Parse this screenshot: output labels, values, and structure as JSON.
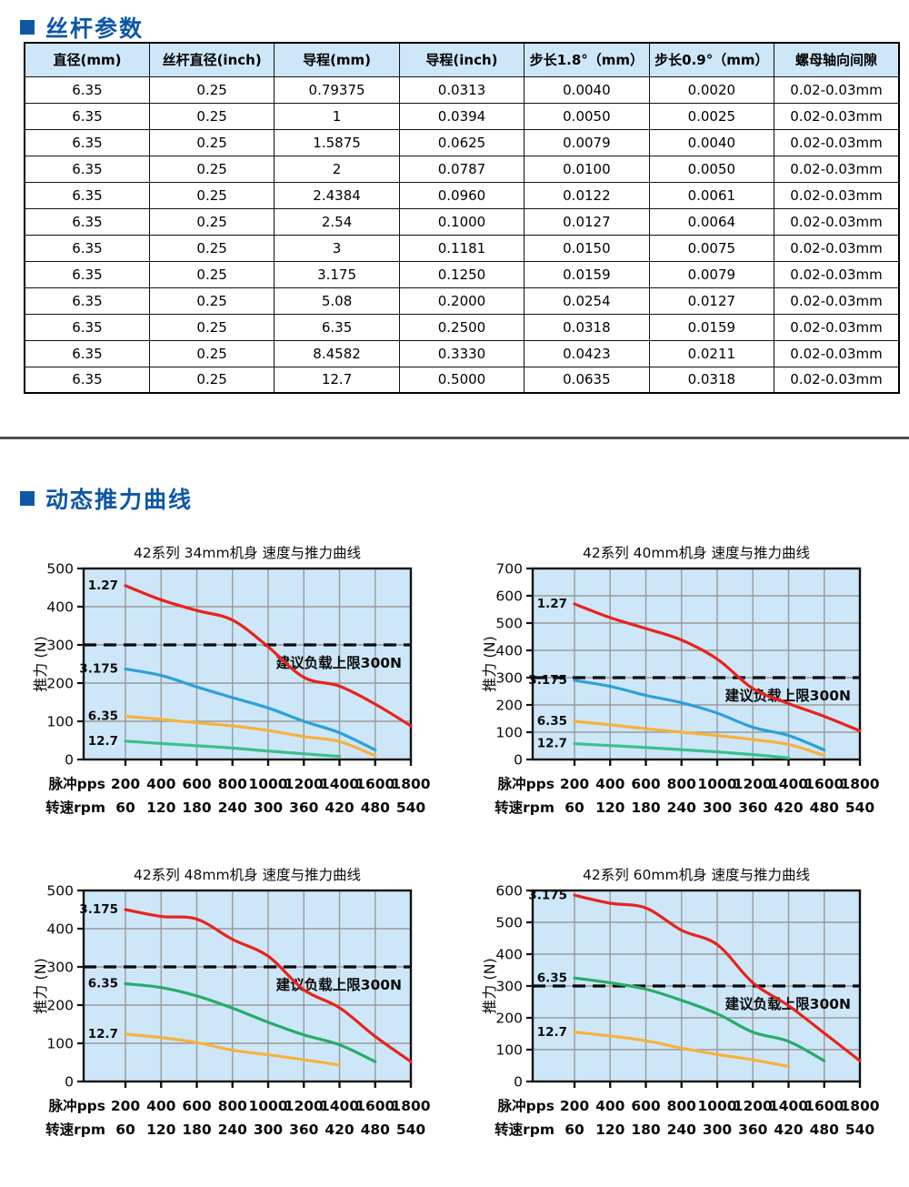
{
  "sections": {
    "screw_params_title": "丝杆参数",
    "thrust_curves_title": "动态推力曲线"
  },
  "theme": {
    "accent_blue": "#0d57a7",
    "table_header_bg": "#cde7f8",
    "divider_color": "#4d4d4d"
  },
  "table": {
    "headers": [
      "直径(mm)",
      "丝杆直径(inch)",
      "导程(mm)",
      "导程(inch)",
      "步长1.8°（mm）",
      "步长0.9°（mm）",
      "螺母轴向间隙"
    ],
    "rows": [
      [
        "6.35",
        "0.25",
        "0.79375",
        "0.0313",
        "0.0040",
        "0.0020",
        "0.02-0.03mm"
      ],
      [
        "6.35",
        "0.25",
        "1",
        "0.0394",
        "0.0050",
        "0.0025",
        "0.02-0.03mm"
      ],
      [
        "6.35",
        "0.25",
        "1.5875",
        "0.0625",
        "0.0079",
        "0.0040",
        "0.02-0.03mm"
      ],
      [
        "6.35",
        "0.25",
        "2",
        "0.0787",
        "0.0100",
        "0.0050",
        "0.02-0.03mm"
      ],
      [
        "6.35",
        "0.25",
        "2.4384",
        "0.0960",
        "0.0122",
        "0.0061",
        "0.02-0.03mm"
      ],
      [
        "6.35",
        "0.25",
        "2.54",
        "0.1000",
        "0.0127",
        "0.0064",
        "0.02-0.03mm"
      ],
      [
        "6.35",
        "0.25",
        "3",
        "0.1181",
        "0.0150",
        "0.0075",
        "0.02-0.03mm"
      ],
      [
        "6.35",
        "0.25",
        "3.175",
        "0.1250",
        "0.0159",
        "0.0079",
        "0.02-0.03mm"
      ],
      [
        "6.35",
        "0.25",
        "5.08",
        "0.2000",
        "0.0254",
        "0.0127",
        "0.02-0.03mm"
      ],
      [
        "6.35",
        "0.25",
        "6.35",
        "0.2500",
        "0.0318",
        "0.0159",
        "0.02-0.03mm"
      ],
      [
        "6.35",
        "0.25",
        "8.4582",
        "0.3330",
        "0.0423",
        "0.0211",
        "0.02-0.03mm"
      ],
      [
        "6.35",
        "0.25",
        "12.7",
        "0.5000",
        "0.0635",
        "0.0318",
        "0.02-0.03mm"
      ]
    ]
  },
  "chart_data": [
    {
      "type": "line",
      "title": "42系列 34mm机身 速度与推力曲线",
      "ylabel": "推力 (N)",
      "ylim": [
        0,
        500
      ],
      "ytick_step": 100,
      "x_row_labels": [
        "脉冲pps",
        "转速rpm"
      ],
      "x_pps": [
        200,
        400,
        600,
        800,
        1000,
        1200,
        1400,
        1600,
        1800
      ],
      "x_rpm": [
        60,
        120,
        180,
        240,
        300,
        360,
        420,
        480,
        540
      ],
      "limit_line": {
        "value": 300,
        "label": "建议负载上限300N"
      },
      "colors": {
        "plot_bg": "#cde7f8",
        "grid": "#9a9a9a"
      },
      "series": [
        {
          "name": "1.27",
          "color": "#e8231d",
          "values": [
            455,
            418,
            390,
            365,
            295,
            215,
            192,
            145,
            88
          ]
        },
        {
          "name": "3.175",
          "color": "#2e9fd9",
          "values": [
            237,
            220,
            190,
            162,
            135,
            100,
            70,
            25,
            null
          ]
        },
        {
          "name": "6.35",
          "color": "#f7b13c",
          "values": [
            113,
            105,
            96,
            88,
            76,
            60,
            47,
            10,
            null
          ]
        },
        {
          "name": "12.7",
          "color": "#3cbf8e",
          "values": [
            48,
            42,
            36,
            30,
            22,
            15,
            8,
            null,
            null
          ]
        }
      ]
    },
    {
      "type": "line",
      "title": "42系列 40mm机身 速度与推力曲线",
      "ylabel": "推力 (N)",
      "ylim": [
        0,
        700
      ],
      "ytick_step": 100,
      "x_row_labels": [
        "脉冲pps",
        "转速rpm"
      ],
      "x_pps": [
        200,
        400,
        600,
        800,
        1000,
        1200,
        1400,
        1600,
        1800
      ],
      "x_rpm": [
        60,
        120,
        180,
        240,
        300,
        360,
        420,
        480,
        540
      ],
      "limit_line": {
        "value": 300,
        "label": "建议负载上限300N"
      },
      "colors": {
        "plot_bg": "#cde7f8",
        "grid": "#9a9a9a"
      },
      "series": [
        {
          "name": "1.27",
          "color": "#e8231d",
          "values": [
            570,
            520,
            480,
            438,
            368,
            260,
            205,
            158,
            105
          ]
        },
        {
          "name": "3.175",
          "color": "#2e9fd9",
          "values": [
            290,
            268,
            235,
            208,
            170,
            118,
            88,
            35,
            null
          ]
        },
        {
          "name": "6.35",
          "color": "#f7b13c",
          "values": [
            140,
            127,
            113,
            100,
            88,
            73,
            55,
            15,
            null
          ]
        },
        {
          "name": "12.7",
          "color": "#3cbf8e",
          "values": [
            58,
            51,
            44,
            36,
            28,
            18,
            6,
            null,
            null
          ]
        }
      ]
    },
    {
      "type": "line",
      "title": "42系列 48mm机身 速度与推力曲线",
      "ylabel": "推力 (N)",
      "ylim": [
        0,
        500
      ],
      "ytick_step": 100,
      "x_row_labels": [
        "脉冲pps",
        "转速rpm"
      ],
      "x_pps": [
        200,
        400,
        600,
        800,
        1000,
        1200,
        1400,
        1600,
        1800
      ],
      "x_rpm": [
        60,
        120,
        180,
        240,
        300,
        360,
        420,
        480,
        540
      ],
      "limit_line": {
        "value": 300,
        "label": "建议负载上限300N"
      },
      "colors": {
        "plot_bg": "#cde7f8",
        "grid": "#9a9a9a"
      },
      "series": [
        {
          "name": "3.175",
          "color": "#e8231d",
          "values": [
            450,
            432,
            425,
            372,
            328,
            240,
            193,
            118,
            52
          ]
        },
        {
          "name": "6.35",
          "color": "#2aab68",
          "values": [
            256,
            246,
            224,
            192,
            155,
            122,
            96,
            52,
            null
          ]
        },
        {
          "name": "12.7",
          "color": "#f7b13c",
          "values": [
            124,
            115,
            102,
            82,
            70,
            57,
            43,
            null,
            null
          ]
        }
      ]
    },
    {
      "type": "line",
      "title": "42系列 60mm机身 速度与推力曲线",
      "ylabel": "推力 (N)",
      "ylim": [
        0,
        600
      ],
      "ytick_step": 100,
      "x_row_labels": [
        "脉冲pps",
        "转速rpm"
      ],
      "x_pps": [
        200,
        400,
        600,
        800,
        1000,
        1200,
        1400,
        1600,
        1800
      ],
      "x_rpm": [
        60,
        120,
        180,
        240,
        300,
        360,
        420,
        480,
        540
      ],
      "limit_line": {
        "value": 300,
        "label": "建议负载上限300N"
      },
      "colors": {
        "plot_bg": "#cde7f8",
        "grid": "#9a9a9a"
      },
      "series": [
        {
          "name": "3.175",
          "color": "#e8231d",
          "values": [
            585,
            560,
            545,
            475,
            430,
            310,
            238,
            152,
            65
          ]
        },
        {
          "name": "6.35",
          "color": "#2aab68",
          "values": [
            325,
            310,
            290,
            255,
            213,
            155,
            126,
            65,
            null
          ]
        },
        {
          "name": "12.7",
          "color": "#f7b13c",
          "values": [
            155,
            143,
            128,
            105,
            85,
            68,
            47,
            null,
            null
          ]
        }
      ]
    }
  ]
}
